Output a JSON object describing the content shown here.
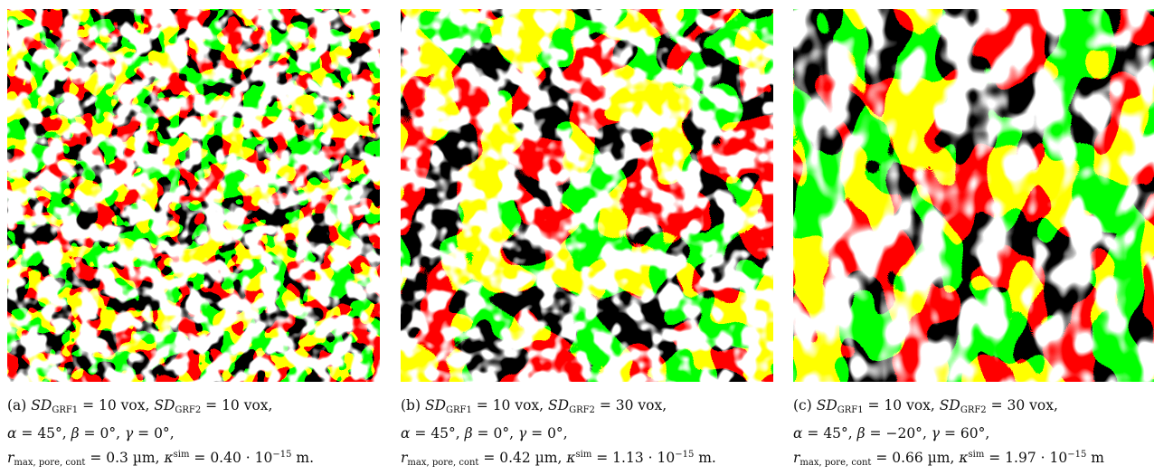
{
  "colors": {
    "phase_red": "#ff0000",
    "phase_green": "#00ff00",
    "pore_white": "#ffffff"
  },
  "panels": [
    {
      "label": "(a)",
      "sd1": "10 vox",
      "sd2": "10 vox",
      "alpha": "45°",
      "beta": "0°",
      "gamma": "0°",
      "r": "0.3 µm",
      "kappa": "0.40 · 10",
      "kexp": "−15",
      "end": " m."
    },
    {
      "label": "(b)",
      "sd1": "10 vox",
      "sd2": "30 vox",
      "alpha": "45°",
      "beta": "0°",
      "gamma": "0°",
      "r": "0.42 µm",
      "kappa": "1.13 · 10",
      "kexp": "−15",
      "end": " m."
    },
    {
      "label": "(c)",
      "sd1": "10 vox",
      "sd2": "30 vox",
      "alpha": "45°",
      "beta": "−20°",
      "gamma": "60°",
      "r": "0.66 µm",
      "kappa": "1.97 · 10",
      "kexp": "−15",
      "end": " m"
    }
  ],
  "symbols": {
    "sd": "SD",
    "grf1": "GRF1",
    "grf2": "GRF2",
    "alpha": "α",
    "beta": "β",
    "gamma": "γ",
    "r": "r",
    "rsub": "max, pore, cont",
    "kappa": "κ",
    "ksup": "sim"
  }
}
